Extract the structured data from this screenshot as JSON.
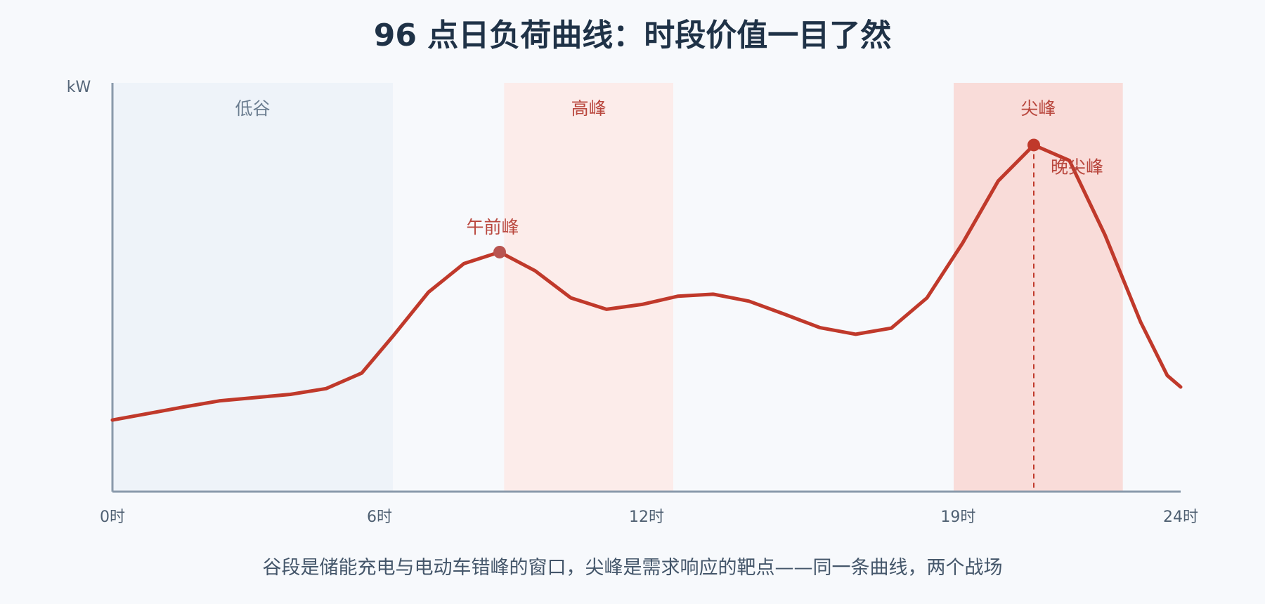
{
  "chart_data": {
    "type": "line",
    "title": "96 点日负荷曲线：时段价值一目了然",
    "ylabel": "kW",
    "caption": "谷段是储能充电与电动车错峰的窗口，尖峰是需求响应的靶点——同一条曲线，两个战场",
    "xlim": [
      0,
      24
    ],
    "ylim": [
      0,
      100
    ],
    "x_ticks": [
      {
        "value": 0,
        "label": "0时"
      },
      {
        "value": 6,
        "label": "6时"
      },
      {
        "value": 12,
        "label": "12时"
      },
      {
        "value": 19,
        "label": "19时"
      },
      {
        "value": 24,
        "label": "24时"
      }
    ],
    "bands": [
      {
        "label": "低谷",
        "start": 0,
        "end": 6.3,
        "fill": "#eef3f9",
        "text_color": "#6b7d90"
      },
      {
        "label": "高峰",
        "start": 8.8,
        "end": 12.6,
        "fill": "#fcecea",
        "text_color": "#b9473e"
      },
      {
        "label": "尖峰",
        "start": 18.9,
        "end": 22.7,
        "fill": "#f9dcd9",
        "text_color": "#b9473e"
      }
    ],
    "series": [
      {
        "color": "#c0392b",
        "x": [
          0,
          0.8,
          1.6,
          2.4,
          3.2,
          4.0,
          4.8,
          5.6,
          6.3,
          7.1,
          7.9,
          8.7,
          9.5,
          10.3,
          11.1,
          11.9,
          12.7,
          13.5,
          14.3,
          15.1,
          15.9,
          16.7,
          17.5,
          18.3,
          19.1,
          19.9,
          20.7,
          21.5,
          22.3,
          23.1,
          23.7,
          24.0
        ],
        "values": [
          17.5,
          19.1,
          20.7,
          22.2,
          23.0,
          23.8,
          25.2,
          29.0,
          38.0,
          48.8,
          55.8,
          58.6,
          54.0,
          47.4,
          44.6,
          45.8,
          47.8,
          48.3,
          46.6,
          43.4,
          40.1,
          38.5,
          40.0,
          47.4,
          60.8,
          76.0,
          84.8,
          81.0,
          62.8,
          41.5,
          28.4,
          25.6
        ]
      }
    ],
    "annotations": [
      {
        "label": "午前峰",
        "x": 8.7,
        "y": 58.6,
        "color": "#b85450"
      },
      {
        "label": "晚尖峰",
        "x": 20.7,
        "y": 84.8,
        "color": "#c0392b",
        "dashed_to_axis": true
      }
    ],
    "grid": false,
    "legend": "none"
  }
}
